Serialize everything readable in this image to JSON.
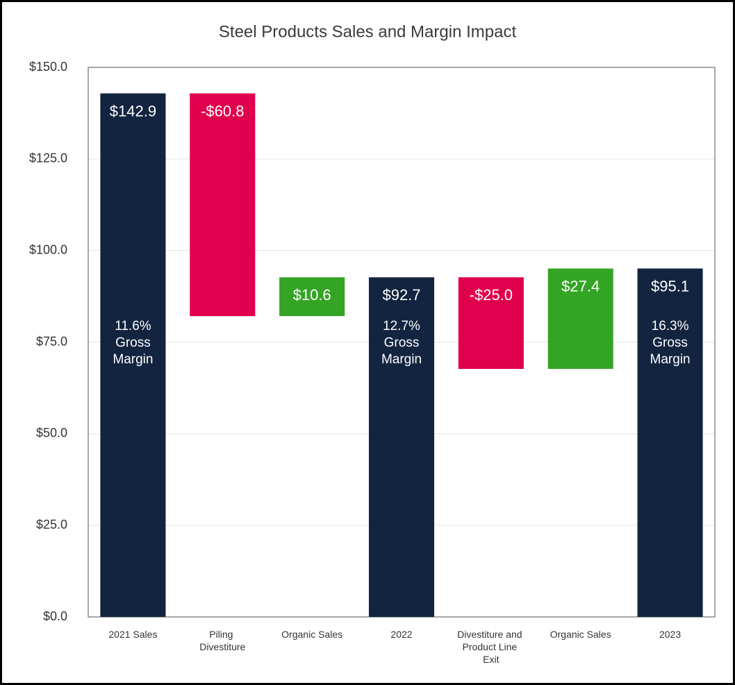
{
  "chart_data": {
    "type": "waterfall",
    "title": "Steel Products Sales and Margin Impact",
    "categories": [
      "2021 Sales",
      "Piling Divestiture",
      "Organic Sales",
      "2022",
      "Divestiture and Product Line Exit",
      "Organic Sales",
      "2023"
    ],
    "measure": [
      "absolute",
      "relative",
      "relative",
      "absolute",
      "relative",
      "relative",
      "absolute"
    ],
    "values": [
      142.9,
      -60.8,
      10.6,
      92.7,
      -25.0,
      27.4,
      95.1
    ],
    "value_labels": [
      "$142.9",
      "-$60.8",
      "$10.6",
      "$92.7",
      "-$25.0",
      "$27.4",
      "$95.1"
    ],
    "margin_labels": [
      [
        "11.6%",
        "Gross",
        "Margin"
      ],
      null,
      null,
      [
        "12.7%",
        "Gross",
        "Margin"
      ],
      null,
      null,
      [
        "16.3%",
        "Gross",
        "Margin"
      ]
    ],
    "colors": {
      "total": "#12243f",
      "decrease": "#e0004d",
      "increase": "#34a425"
    },
    "ylim": [
      0,
      150
    ],
    "yticks": [
      {
        "value": 0,
        "label": "$0.0"
      },
      {
        "value": 25,
        "label": "$25.0"
      },
      {
        "value": 50,
        "label": "$50.0"
      },
      {
        "value": 75,
        "label": "$75.0"
      },
      {
        "value": 100,
        "label": "$100.0"
      },
      {
        "value": 125,
        "label": "$125.0"
      },
      {
        "value": 150,
        "label": "$150.0"
      }
    ],
    "grid": true
  }
}
